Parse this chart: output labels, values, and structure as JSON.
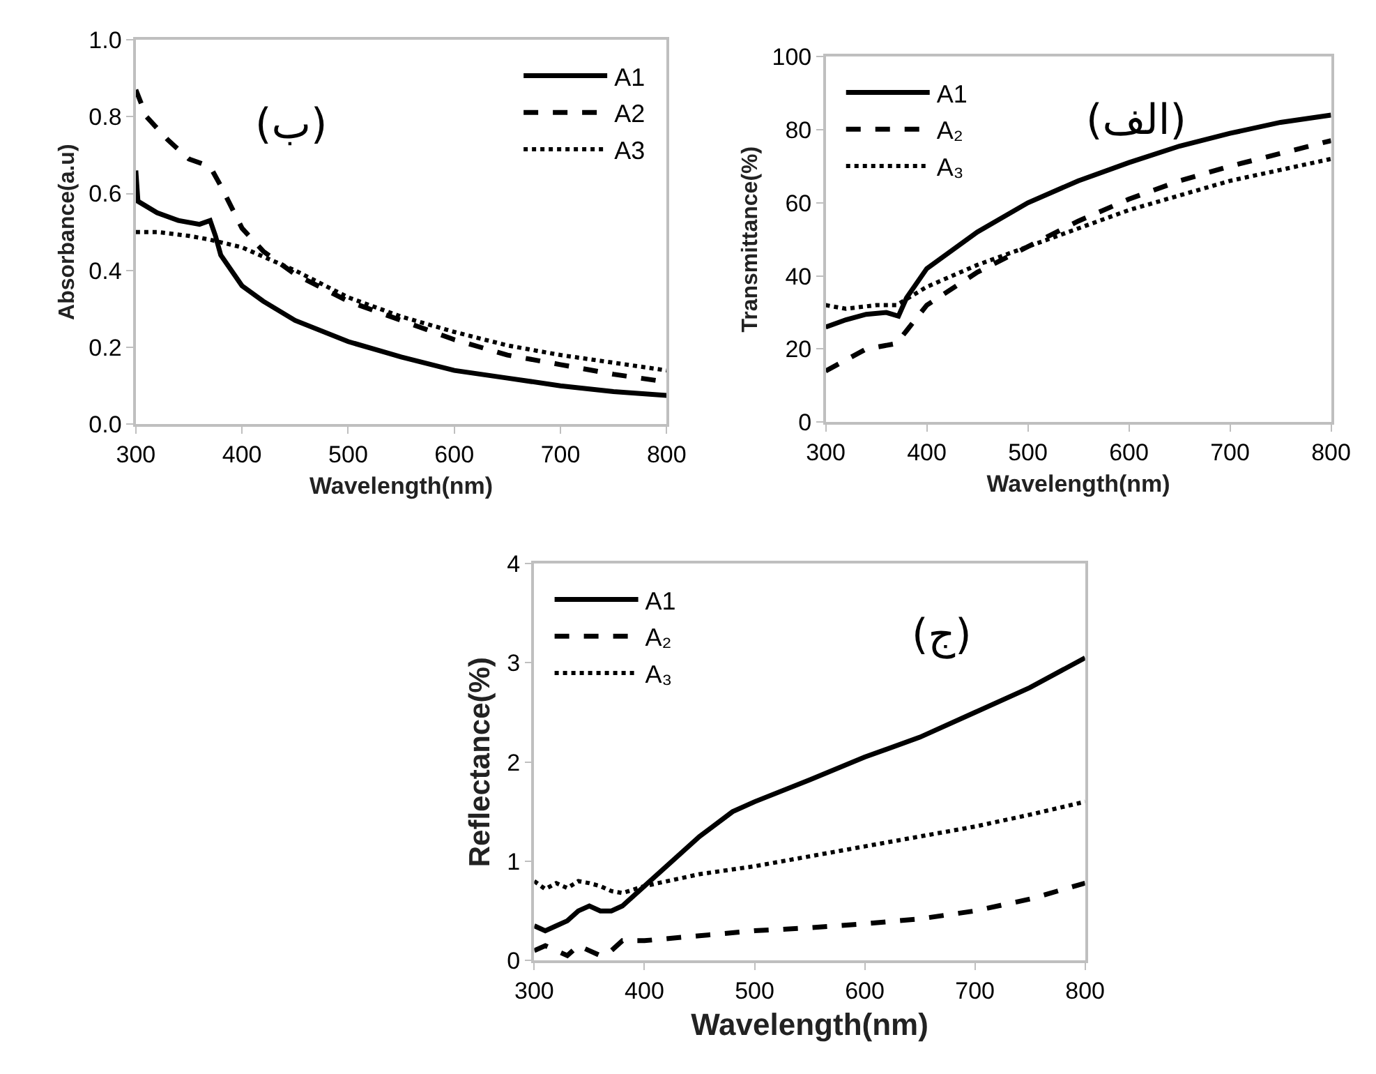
{
  "chart_data": [
    {
      "type": "line",
      "xlabel": "Wavelength(nm)",
      "ylabel": "Absorbance(a.u)",
      "annotations": [
        "(ب)"
      ],
      "xlim": [
        300,
        800
      ],
      "xticks": [
        300,
        400,
        500,
        600,
        700,
        800
      ],
      "ylim": [
        0,
        1
      ],
      "yticks": [
        {
          "value": 0,
          "label": "0.0"
        },
        {
          "value": 0.2,
          "label": "0.2"
        },
        {
          "value": 0.4,
          "label": "0.4"
        },
        {
          "value": 0.6,
          "label": "0.6"
        },
        {
          "value": 0.8,
          "label": "0.8"
        },
        {
          "value": 1,
          "label": "1.0"
        }
      ],
      "grid": false,
      "legend": "top right",
      "marker": "none",
      "series": [
        {
          "name": "A1",
          "color": "#000000",
          "line_style": "solid",
          "x": [
            300,
            302,
            320,
            340,
            360,
            370,
            375,
            380,
            400,
            420,
            450,
            500,
            550,
            600,
            650,
            700,
            750,
            800
          ],
          "values": [
            0.66,
            0.58,
            0.55,
            0.53,
            0.52,
            0.53,
            0.49,
            0.44,
            0.36,
            0.32,
            0.27,
            0.215,
            0.175,
            0.14,
            0.12,
            0.1,
            0.085,
            0.075
          ]
        },
        {
          "name": "A2",
          "color": "#000000",
          "line_style": "dashed",
          "x": [
            300,
            310,
            330,
            350,
            370,
            380,
            400,
            420,
            450,
            500,
            550,
            600,
            650,
            700,
            750,
            800
          ],
          "values": [
            0.87,
            0.8,
            0.74,
            0.69,
            0.67,
            0.62,
            0.51,
            0.45,
            0.39,
            0.32,
            0.27,
            0.22,
            0.18,
            0.155,
            0.13,
            0.11
          ]
        },
        {
          "name": "A3",
          "color": "#000000",
          "line_style": "dotted",
          "x": [
            300,
            320,
            350,
            370,
            400,
            450,
            500,
            550,
            600,
            650,
            700,
            750,
            800
          ],
          "values": [
            0.5,
            0.5,
            0.49,
            0.48,
            0.46,
            0.4,
            0.33,
            0.28,
            0.24,
            0.205,
            0.18,
            0.16,
            0.14
          ]
        }
      ]
    },
    {
      "type": "line",
      "xlabel": "Wavelength(nm)",
      "ylabel": "Transmittance(%)",
      "annotations": [
        "(الف)"
      ],
      "xlim": [
        300,
        800
      ],
      "xticks": [
        300,
        400,
        500,
        600,
        700,
        800
      ],
      "ylim": [
        0,
        100
      ],
      "yticks": [
        0,
        20,
        40,
        60,
        80,
        100
      ],
      "grid": false,
      "legend": "top left",
      "marker": "none",
      "series": [
        {
          "name": "A1",
          "color": "#000000",
          "line_style": "solid",
          "x": [
            300,
            320,
            340,
            360,
            372,
            380,
            400,
            450,
            500,
            550,
            600,
            650,
            700,
            750,
            800
          ],
          "values": [
            26,
            28,
            29.5,
            30,
            29,
            34,
            42,
            52,
            60,
            66,
            71,
            75.5,
            79,
            82,
            84
          ]
        },
        {
          "name": "A₂",
          "color": "#000000",
          "line_style": "dashed",
          "x": [
            300,
            320,
            340,
            370,
            380,
            400,
            450,
            500,
            550,
            600,
            650,
            700,
            750,
            800
          ],
          "values": [
            14,
            17,
            20,
            21.5,
            25,
            32,
            41,
            48,
            55,
            61,
            66,
            70,
            73.5,
            77
          ]
        },
        {
          "name": "A₃",
          "color": "#000000",
          "line_style": "dotted",
          "x": [
            300,
            320,
            350,
            370,
            400,
            450,
            500,
            550,
            600,
            650,
            700,
            750,
            800
          ],
          "values": [
            32,
            31,
            32,
            32,
            37,
            43,
            48,
            53,
            58,
            62,
            66,
            69,
            72
          ]
        }
      ]
    },
    {
      "type": "line",
      "xlabel": "Wavelength(nm)",
      "ylabel": "Reflectance(%)",
      "annotations": [
        "(ج)"
      ],
      "xlim": [
        300,
        800
      ],
      "xticks": [
        300,
        400,
        500,
        600,
        700,
        800
      ],
      "ylim": [
        0,
        4
      ],
      "yticks": [
        0,
        1,
        2,
        3,
        4
      ],
      "grid": false,
      "legend": "top left",
      "marker": "none",
      "series": [
        {
          "name": "A1",
          "color": "#000000",
          "line_style": "solid",
          "x": [
            300,
            310,
            320,
            330,
            340,
            350,
            360,
            370,
            380,
            400,
            420,
            450,
            480,
            500,
            550,
            600,
            650,
            700,
            750,
            800
          ],
          "values": [
            0.35,
            0.3,
            0.35,
            0.4,
            0.5,
            0.55,
            0.5,
            0.5,
            0.55,
            0.75,
            0.95,
            1.25,
            1.5,
            1.6,
            1.82,
            2.05,
            2.25,
            2.5,
            2.75,
            3.05
          ]
        },
        {
          "name": "A₂",
          "color": "#000000",
          "line_style": "dashed",
          "x": [
            300,
            310,
            320,
            330,
            340,
            350,
            360,
            370,
            380,
            400,
            450,
            500,
            550,
            600,
            650,
            700,
            750,
            800
          ],
          "values": [
            0.1,
            0.15,
            0.1,
            0.05,
            0.15,
            0.1,
            0.05,
            0.1,
            0.2,
            0.2,
            0.25,
            0.3,
            0.33,
            0.37,
            0.42,
            0.5,
            0.62,
            0.78
          ]
        },
        {
          "name": "A₃",
          "color": "#000000",
          "line_style": "dotted",
          "x": [
            300,
            310,
            320,
            330,
            340,
            350,
            360,
            370,
            380,
            400,
            450,
            500,
            550,
            600,
            650,
            700,
            750,
            800
          ],
          "values": [
            0.8,
            0.72,
            0.78,
            0.73,
            0.8,
            0.78,
            0.75,
            0.7,
            0.68,
            0.75,
            0.87,
            0.95,
            1.05,
            1.15,
            1.25,
            1.35,
            1.47,
            1.6
          ]
        }
      ]
    }
  ]
}
